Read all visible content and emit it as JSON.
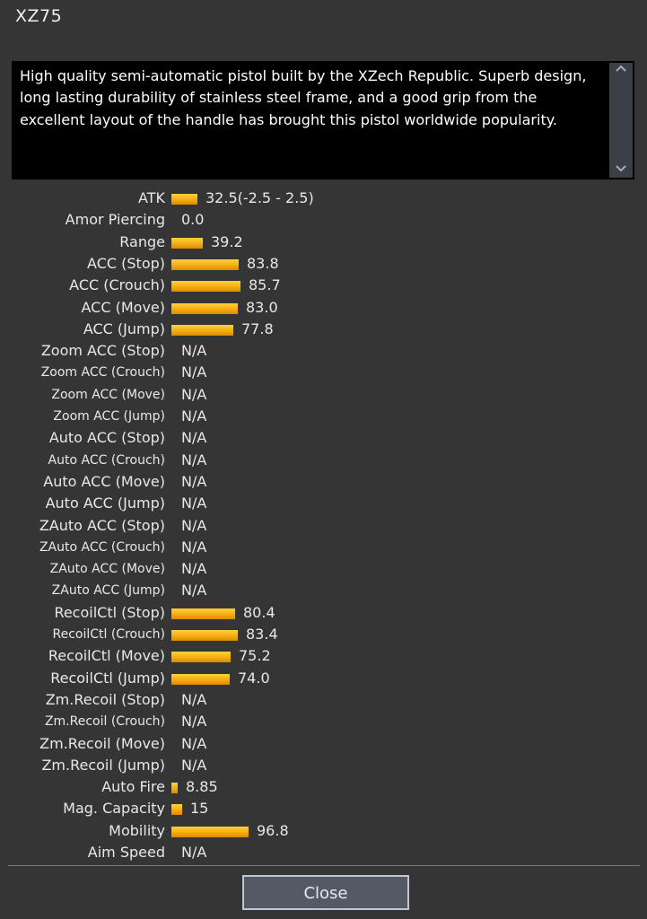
{
  "title": "XZ75",
  "description": "High quality semi-automatic pistol built by the XZech Republic. Superb design, long lasting durability of stainless steel frame, and a good grip from the excellent layout of the handle has brought this pistol worldwide popularity.",
  "icons": {
    "scroll_up": "chevron-up-icon",
    "scroll_down": "chevron-down-icon"
  },
  "colors": {
    "bar": "#f5ad10",
    "background": "#353535"
  },
  "stats": [
    {
      "label": "ATK",
      "value": "32.5(-2.5 - 2.5)",
      "level": 0.29
    },
    {
      "label": "Amor Piercing",
      "value": "0.0",
      "level": 0
    },
    {
      "label": "Range",
      "value": "39.2",
      "level": 0.35
    },
    {
      "label": "ACC (Stop)",
      "value": "83.8",
      "level": 0.75
    },
    {
      "label": "ACC (Crouch)",
      "value": "85.7",
      "level": 0.77
    },
    {
      "label": "ACC (Move)",
      "value": "83.0",
      "level": 0.74
    },
    {
      "label": "ACC (Jump)",
      "value": "77.8",
      "level": 0.69
    },
    {
      "label": "Zoom ACC (Stop)",
      "value": "N/A",
      "level": 0
    },
    {
      "label": "Zoom ACC (Crouch)",
      "value": "N/A",
      "level": 0,
      "small": true
    },
    {
      "label": "Zoom ACC (Move)",
      "value": "N/A",
      "level": 0,
      "small": true
    },
    {
      "label": "Zoom ACC (Jump)",
      "value": "N/A",
      "level": 0,
      "small": true
    },
    {
      "label": "Auto ACC (Stop)",
      "value": "N/A",
      "level": 0
    },
    {
      "label": "Auto ACC (Crouch)",
      "value": "N/A",
      "level": 0,
      "small": true
    },
    {
      "label": "Auto ACC (Move)",
      "value": "N/A",
      "level": 0
    },
    {
      "label": "Auto ACC (Jump)",
      "value": "N/A",
      "level": 0
    },
    {
      "label": "ZAuto ACC (Stop)",
      "value": "N/A",
      "level": 0
    },
    {
      "label": "ZAuto ACC (Crouch)",
      "value": "N/A",
      "level": 0,
      "small": true
    },
    {
      "label": "ZAuto ACC (Move)",
      "value": "N/A",
      "level": 0,
      "small": true
    },
    {
      "label": "ZAuto ACC (Jump)",
      "value": "N/A",
      "level": 0,
      "small": true
    },
    {
      "label": "RecoilCtl (Stop)",
      "value": "80.4",
      "level": 0.71
    },
    {
      "label": "RecoilCtl (Crouch)",
      "value": "83.4",
      "level": 0.74,
      "small": true
    },
    {
      "label": "RecoilCtl (Move)",
      "value": "75.2",
      "level": 0.66
    },
    {
      "label": "RecoilCtl (Jump)",
      "value": "74.0",
      "level": 0.65
    },
    {
      "label": "Zm.Recoil (Stop)",
      "value": "N/A",
      "level": 0
    },
    {
      "label": "Zm.Recoil (Crouch)",
      "value": "N/A",
      "level": 0,
      "small": true
    },
    {
      "label": "Zm.Recoil (Move)",
      "value": "N/A",
      "level": 0
    },
    {
      "label": "Zm.Recoil (Jump)",
      "value": "N/A",
      "level": 0
    },
    {
      "label": "Auto Fire",
      "value": "8.85",
      "level": 0.07
    },
    {
      "label": "Mag. Capacity",
      "value": "15",
      "level": 0.12
    },
    {
      "label": "Mobility",
      "value": "96.8",
      "level": 0.86
    },
    {
      "label": "Aim Speed",
      "value": "N/A",
      "level": 0
    }
  ],
  "close_label": "Close"
}
